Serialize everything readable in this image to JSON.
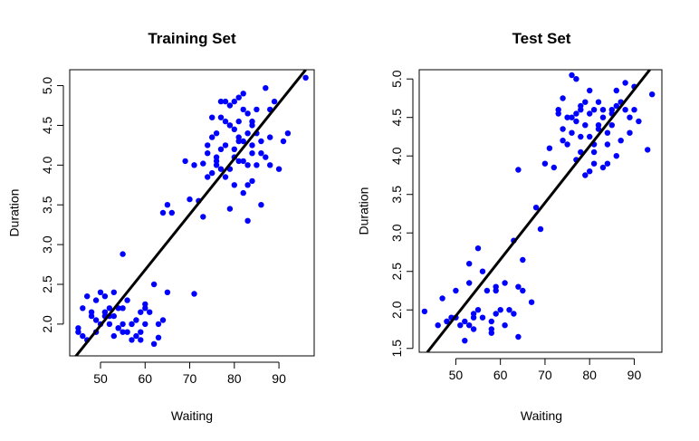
{
  "chart_data": [
    {
      "type": "scatter",
      "title": "Training Set",
      "xlabel": "Waiting",
      "ylabel": "Duration",
      "xlim": [
        43.1,
        97.9
      ],
      "ylim": [
        1.6,
        5.2
      ],
      "xticks": [
        "50",
        "60",
        "70",
        "80",
        "90"
      ],
      "yticks": [
        "2.0",
        "2.5",
        "3.0",
        "3.5",
        "4.0",
        "4.5",
        "5.0"
      ],
      "point_color": "#0000ff",
      "line_color": "#000000",
      "fit_line": {
        "x": [
          43.1,
          96.0
        ],
        "y": [
          1.5,
          5.2
        ]
      },
      "points": {
        "x": [
          45,
          46,
          47,
          48,
          49,
          49,
          50,
          50,
          51,
          51,
          52,
          52,
          53,
          53,
          54,
          54,
          55,
          55,
          56,
          57,
          57,
          58,
          58,
          59,
          59,
          60,
          60,
          60,
          62,
          62,
          63,
          64,
          65,
          46,
          49,
          51,
          53,
          55,
          57,
          59,
          61,
          63,
          47,
          52,
          56,
          45,
          48,
          54,
          71,
          55,
          64,
          65,
          66,
          69,
          70,
          71,
          72,
          73,
          74,
          74,
          75,
          75,
          76,
          76,
          77,
          77,
          77,
          78,
          78,
          78,
          79,
          79,
          79,
          80,
          80,
          80,
          81,
          81,
          81,
          82,
          82,
          82,
          83,
          83,
          83,
          84,
          84,
          84,
          85,
          85,
          86,
          86,
          87,
          88,
          88,
          89,
          90,
          91,
          92,
          96,
          73,
          75,
          76,
          77,
          78,
          80,
          81,
          82,
          83,
          84,
          85,
          87,
          74,
          76,
          79,
          80,
          82,
          84,
          86,
          88,
          79,
          81,
          83
        ],
        "y": [
          1.95,
          2.2,
          2.35,
          2.1,
          1.9,
          2.3,
          2.4,
          2.0,
          2.15,
          2.35,
          2.0,
          2.2,
          1.85,
          2.1,
          2.2,
          1.95,
          2.0,
          2.88,
          1.9,
          1.8,
          2.0,
          1.85,
          2.05,
          1.8,
          2.15,
          2.0,
          2.2,
          2.25,
          1.75,
          2.5,
          1.83,
          2.05,
          2.4,
          1.85,
          2.05,
          2.1,
          2.4,
          2.2,
          2.0,
          1.9,
          2.15,
          2.0,
          1.8,
          2.1,
          2.3,
          1.9,
          2.15,
          1.95,
          2.38,
          1.9,
          3.4,
          3.5,
          3.4,
          4.05,
          3.57,
          4.0,
          3.55,
          3.35,
          3.85,
          4.15,
          3.9,
          4.35,
          4.05,
          4.4,
          3.95,
          4.2,
          4.6,
          4.8,
          3.85,
          4.25,
          4.5,
          3.95,
          4.75,
          3.75,
          4.1,
          4.45,
          4.05,
          4.55,
          4.85,
          4.05,
          4.3,
          4.7,
          3.3,
          4.4,
          4.65,
          3.8,
          4.25,
          4.55,
          4.0,
          4.4,
          3.5,
          4.3,
          4.97,
          4.0,
          4.35,
          4.8,
          3.95,
          4.3,
          4.4,
          5.1,
          4.02,
          4.6,
          4.0,
          4.8,
          4.55,
          4.2,
          4.3,
          4.9,
          3.75,
          4.15,
          4.7,
          4.1,
          4.25,
          4.1,
          3.45,
          4.8,
          3.65,
          4.5,
          4.15,
          4.7,
          4.5,
          4.35,
          4.0
        ]
      }
    },
    {
      "type": "scatter",
      "title": "Test Set",
      "xlabel": "Waiting",
      "ylabel": "Duration",
      "xlim": [
        41.8,
        96.2
      ],
      "ylim": [
        1.45,
        5.12
      ],
      "xticks": [
        "50",
        "60",
        "70",
        "80",
        "90"
      ],
      "yticks": [
        "1.5",
        "2.0",
        "2.5",
        "3.0",
        "3.5",
        "4.0",
        "4.5",
        "5.0"
      ],
      "point_color": "#0000ff",
      "line_color": "#000000",
      "fit_line": {
        "x": [
          43.6,
          93.5
        ],
        "y": [
          1.45,
          5.12
        ]
      },
      "points": {
        "x": [
          43,
          46,
          47,
          48,
          49,
          50,
          50,
          51,
          52,
          52,
          53,
          53,
          54,
          54,
          55,
          55,
          56,
          57,
          58,
          58,
          59,
          59,
          60,
          61,
          62,
          63,
          64,
          64,
          65,
          67,
          48,
          53,
          54,
          56,
          58,
          59,
          61,
          63,
          64,
          65,
          68,
          69,
          70,
          71,
          72,
          73,
          73,
          74,
          74,
          75,
          75,
          76,
          76,
          77,
          77,
          77,
          78,
          78,
          78,
          79,
          79,
          80,
          80,
          80,
          81,
          81,
          81,
          82,
          82,
          83,
          83,
          84,
          84,
          85,
          85,
          86,
          86,
          87,
          88,
          88,
          89,
          90,
          91,
          93,
          94,
          74,
          76,
          79,
          81,
          83,
          85,
          87,
          89,
          78,
          82,
          84,
          86,
          80,
          90,
          77
        ],
        "y": [
          1.98,
          1.8,
          2.15,
          1.85,
          1.9,
          1.9,
          2.25,
          1.8,
          1.6,
          1.85,
          2.6,
          1.8,
          1.75,
          1.95,
          2.0,
          2.8,
          1.9,
          2.25,
          1.7,
          1.85,
          1.95,
          2.3,
          2.0,
          1.8,
          2.0,
          2.9,
          2.3,
          3.82,
          2.65,
          2.1,
          1.85,
          2.35,
          1.9,
          2.5,
          1.75,
          2.25,
          2.35,
          1.95,
          1.65,
          2.25,
          3.33,
          3.05,
          3.9,
          4.1,
          3.85,
          4.55,
          4.6,
          4.35,
          4.75,
          4.5,
          4.15,
          4.3,
          5.05,
          3.95,
          4.55,
          5.0,
          4.6,
          4.05,
          4.65,
          3.75,
          4.4,
          3.8,
          4.55,
          4.85,
          3.9,
          4.15,
          4.6,
          4.4,
          4.7,
          3.85,
          4.5,
          3.9,
          4.3,
          4.6,
          4.55,
          4.0,
          4.85,
          4.2,
          4.95,
          4.6,
          4.3,
          4.9,
          4.45,
          4.08,
          4.8,
          4.2,
          4.5,
          4.7,
          4.05,
          4.6,
          4.4,
          4.7,
          4.5,
          4.25,
          4.35,
          4.15,
          4.65,
          4.25,
          4.6,
          4.45
        ]
      }
    }
  ]
}
